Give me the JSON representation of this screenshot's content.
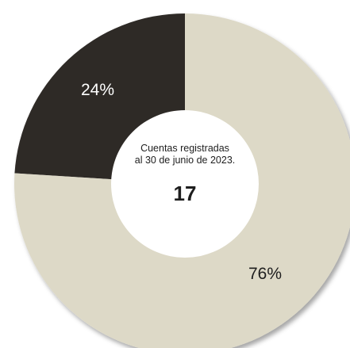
{
  "colors": {
    "primary": "#2f2c28",
    "secondary": "#ddd9c7",
    "label_on_dark": "#ffffff",
    "label_on_light": "#1e1e1e"
  },
  "center": {
    "caption_line1": "Cuentas registradas",
    "caption_line2": "al 30 de junio de 2023.",
    "value": "17"
  },
  "chart_data": {
    "type": "pie",
    "donut": true,
    "title": "",
    "slices": [
      {
        "value": 24,
        "label": "24%",
        "color": "#2f2c28",
        "label_color": "#ffffff"
      },
      {
        "value": 76,
        "label": "76%",
        "color": "#ddd9c7",
        "label_color": "#1e1e1e"
      }
    ]
  }
}
